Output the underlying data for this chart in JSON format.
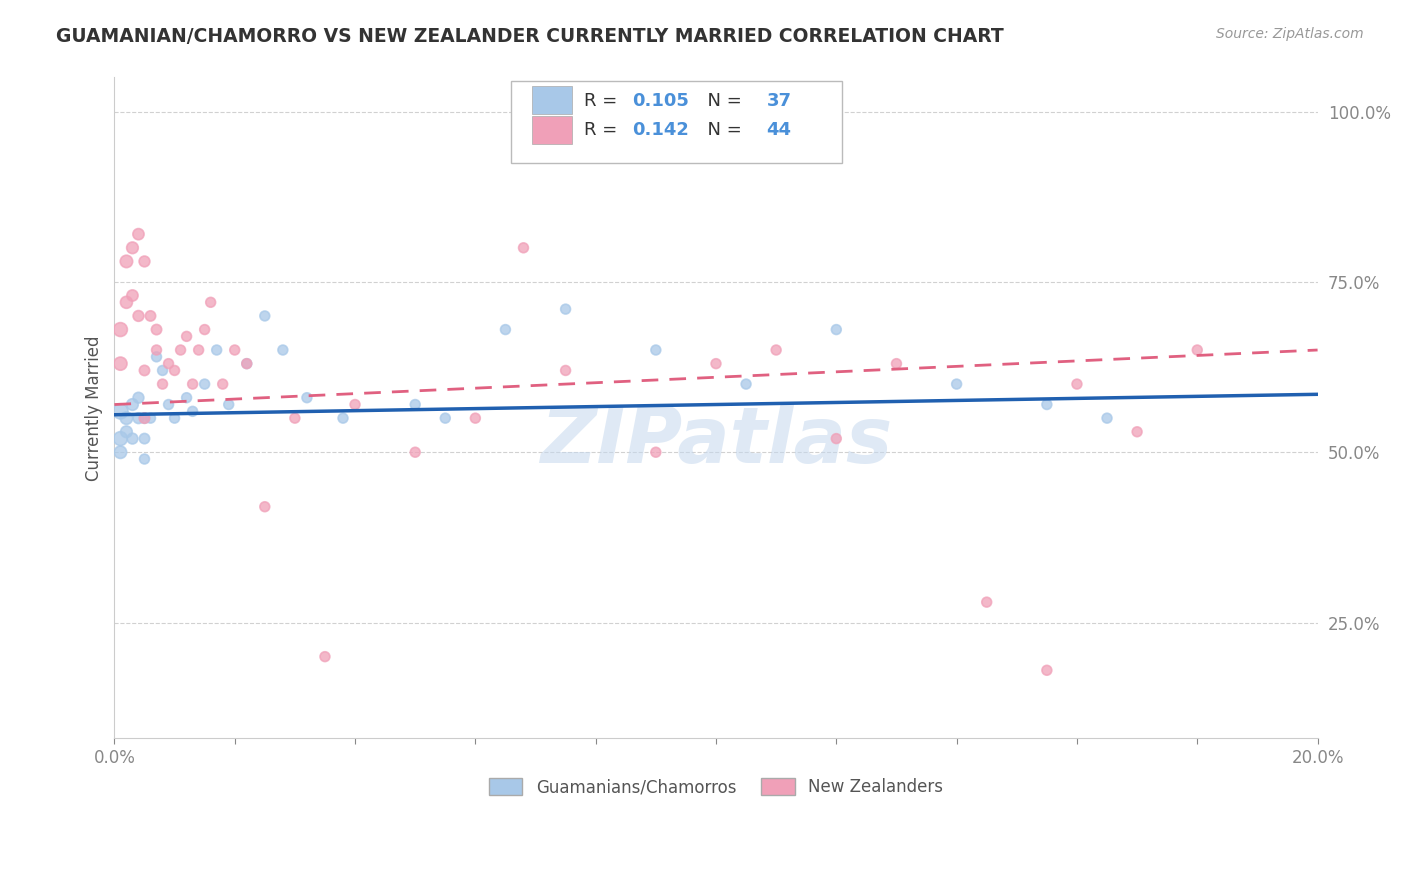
{
  "title": "GUAMANIAN/CHAMORRO VS NEW ZEALANDER CURRENTLY MARRIED CORRELATION CHART",
  "source_text": "Source: ZipAtlas.com",
  "ylabel": "Currently Married",
  "xlim": [
    0.0,
    0.2
  ],
  "ylim": [
    0.08,
    1.05
  ],
  "yticks": [
    0.25,
    0.5,
    0.75,
    1.0
  ],
  "yticklabels": [
    "25.0%",
    "50.0%",
    "75.0%",
    "100.0%"
  ],
  "blue_color": "#a8c8e8",
  "pink_color": "#f0a0b8",
  "blue_line_color": "#2060b0",
  "pink_line_color": "#e06080",
  "R_blue": 0.105,
  "N_blue": 37,
  "R_pink": 0.142,
  "N_pink": 44,
  "blue_scatter_x": [
    0.001,
    0.001,
    0.001,
    0.002,
    0.002,
    0.003,
    0.003,
    0.004,
    0.004,
    0.005,
    0.005,
    0.005,
    0.006,
    0.007,
    0.008,
    0.009,
    0.01,
    0.012,
    0.013,
    0.015,
    0.017,
    0.019,
    0.022,
    0.025,
    0.028,
    0.032,
    0.038,
    0.05,
    0.055,
    0.065,
    0.075,
    0.09,
    0.105,
    0.12,
    0.14,
    0.155,
    0.165
  ],
  "blue_scatter_y": [
    0.56,
    0.52,
    0.5,
    0.55,
    0.53,
    0.57,
    0.52,
    0.55,
    0.58,
    0.55,
    0.52,
    0.49,
    0.55,
    0.64,
    0.62,
    0.57,
    0.55,
    0.58,
    0.56,
    0.6,
    0.65,
    0.57,
    0.63,
    0.7,
    0.65,
    0.58,
    0.55,
    0.57,
    0.55,
    0.68,
    0.71,
    0.65,
    0.6,
    0.68,
    0.6,
    0.57,
    0.55
  ],
  "blue_scatter_size": [
    120,
    100,
    80,
    80,
    70,
    70,
    60,
    60,
    60,
    55,
    55,
    50,
    50,
    50,
    50,
    50,
    50,
    50,
    50,
    50,
    50,
    50,
    50,
    50,
    50,
    50,
    50,
    50,
    50,
    50,
    50,
    50,
    50,
    50,
    50,
    50,
    50
  ],
  "pink_scatter_x": [
    0.001,
    0.001,
    0.002,
    0.002,
    0.003,
    0.003,
    0.004,
    0.004,
    0.005,
    0.005,
    0.005,
    0.006,
    0.007,
    0.007,
    0.008,
    0.009,
    0.01,
    0.011,
    0.012,
    0.013,
    0.014,
    0.015,
    0.016,
    0.018,
    0.02,
    0.022,
    0.025,
    0.03,
    0.035,
    0.04,
    0.05,
    0.06,
    0.068,
    0.075,
    0.09,
    0.1,
    0.11,
    0.12,
    0.13,
    0.145,
    0.155,
    0.16,
    0.17,
    0.18
  ],
  "pink_scatter_y": [
    0.68,
    0.63,
    0.78,
    0.72,
    0.8,
    0.73,
    0.82,
    0.7,
    0.78,
    0.62,
    0.55,
    0.7,
    0.68,
    0.65,
    0.6,
    0.63,
    0.62,
    0.65,
    0.67,
    0.6,
    0.65,
    0.68,
    0.72,
    0.6,
    0.65,
    0.63,
    0.42,
    0.55,
    0.2,
    0.57,
    0.5,
    0.55,
    0.8,
    0.62,
    0.5,
    0.63,
    0.65,
    0.52,
    0.63,
    0.28,
    0.18,
    0.6,
    0.53,
    0.65
  ],
  "pink_scatter_size": [
    100,
    90,
    80,
    75,
    70,
    65,
    65,
    60,
    60,
    55,
    55,
    55,
    55,
    50,
    50,
    50,
    50,
    50,
    50,
    50,
    50,
    50,
    50,
    50,
    50,
    50,
    50,
    50,
    50,
    50,
    50,
    50,
    50,
    50,
    50,
    50,
    50,
    50,
    50,
    50,
    50,
    50,
    50,
    50
  ],
  "watermark": "ZIPatlas",
  "background_color": "#ffffff",
  "grid_color": "#cccccc",
  "title_color": "#333333",
  "axis_label_color": "#555555",
  "tick_label_color": "#4a90d9"
}
